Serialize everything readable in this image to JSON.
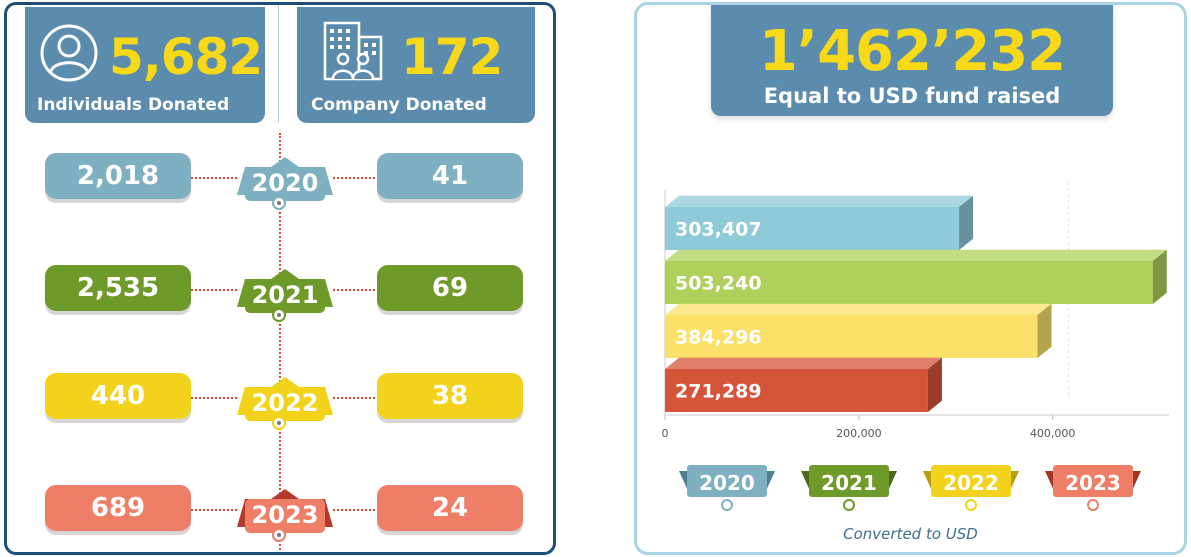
{
  "left": {
    "individuals": {
      "value": "5,682",
      "label": "Individuals Donated",
      "icon": "person-icon"
    },
    "companies": {
      "value": "172",
      "label": "Company Donated",
      "icon": "building-people-icon"
    },
    "years": [
      {
        "year": "2020",
        "individuals": "2,018",
        "companies": "41",
        "color": "#7fb0c2",
        "text_color": "#ffffff"
      },
      {
        "year": "2021",
        "individuals": "2,535",
        "companies": "69",
        "color": "#6e9a2a",
        "text_color": "#ffffff"
      },
      {
        "year": "2022",
        "individuals": "440",
        "companies": "38",
        "color": "#f2d21b",
        "text_color": "#ffffff"
      },
      {
        "year": "2023",
        "individuals": "689",
        "companies": "24",
        "color": "#ef7e67",
        "text_color": "#ffffff"
      }
    ]
  },
  "right": {
    "total": {
      "value": "1’462’232",
      "label": "Equal to USD fund raised"
    },
    "caption": "Converted to USD",
    "legend": [
      {
        "label": "2020",
        "color": "#7fb0c2",
        "text_color": "#ffffff"
      },
      {
        "label": "2021",
        "color": "#6e9a2a",
        "text_color": "#ffffff"
      },
      {
        "label": "2022",
        "color": "#f2d21b",
        "text_color": "#ffffff"
      },
      {
        "label": "2023",
        "color": "#ef7e67",
        "text_color": "#ffffff"
      }
    ]
  },
  "chart_data": {
    "type": "bar",
    "orientation": "horizontal",
    "categories": [
      "2020",
      "2021",
      "2022",
      "2023"
    ],
    "values": [
      303407,
      503240,
      384296,
      271289
    ],
    "value_labels": [
      "303,407",
      "503,240",
      "384,296",
      "271,289"
    ],
    "colors": [
      "#8fcad8",
      "#b0d05c",
      "#fbe16a",
      "#d4553a"
    ],
    "xlim": [
      0,
      520000
    ],
    "xticks": [
      0,
      200000,
      400000
    ],
    "xtick_labels": [
      "0",
      "200,000",
      "400,000"
    ],
    "title": "",
    "xlabel": "",
    "ylabel": ""
  }
}
